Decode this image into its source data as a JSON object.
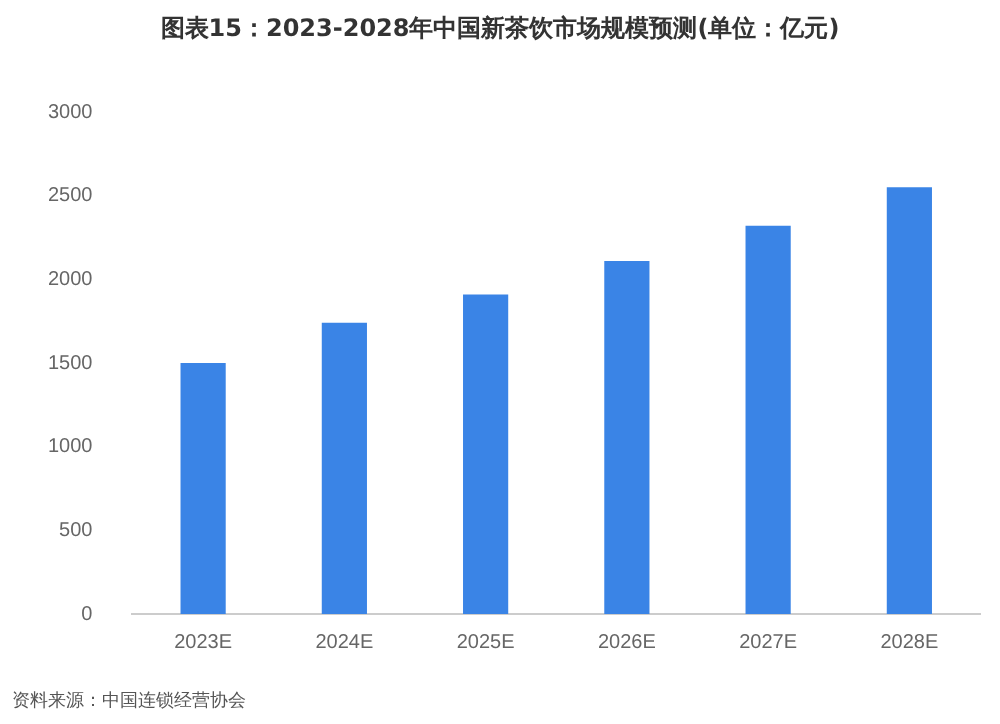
{
  "chart_data": {
    "type": "bar",
    "title": "图表15：2023-2028年中国新茶饮市场规模预测(单位：亿元)",
    "categories": [
      "2023E",
      "2024E",
      "2025E",
      "2026E",
      "2027E",
      "2028E"
    ],
    "values": [
      1500,
      1740,
      1910,
      2110,
      2320,
      2550
    ],
    "color": "#3a84e6",
    "ylim": [
      0,
      3000
    ],
    "yticks": [
      0,
      500,
      1000,
      1500,
      2000,
      2500,
      3000
    ],
    "grid": false,
    "legend": false,
    "annotations": [
      "资料来源：中国连锁经营协会"
    ]
  }
}
